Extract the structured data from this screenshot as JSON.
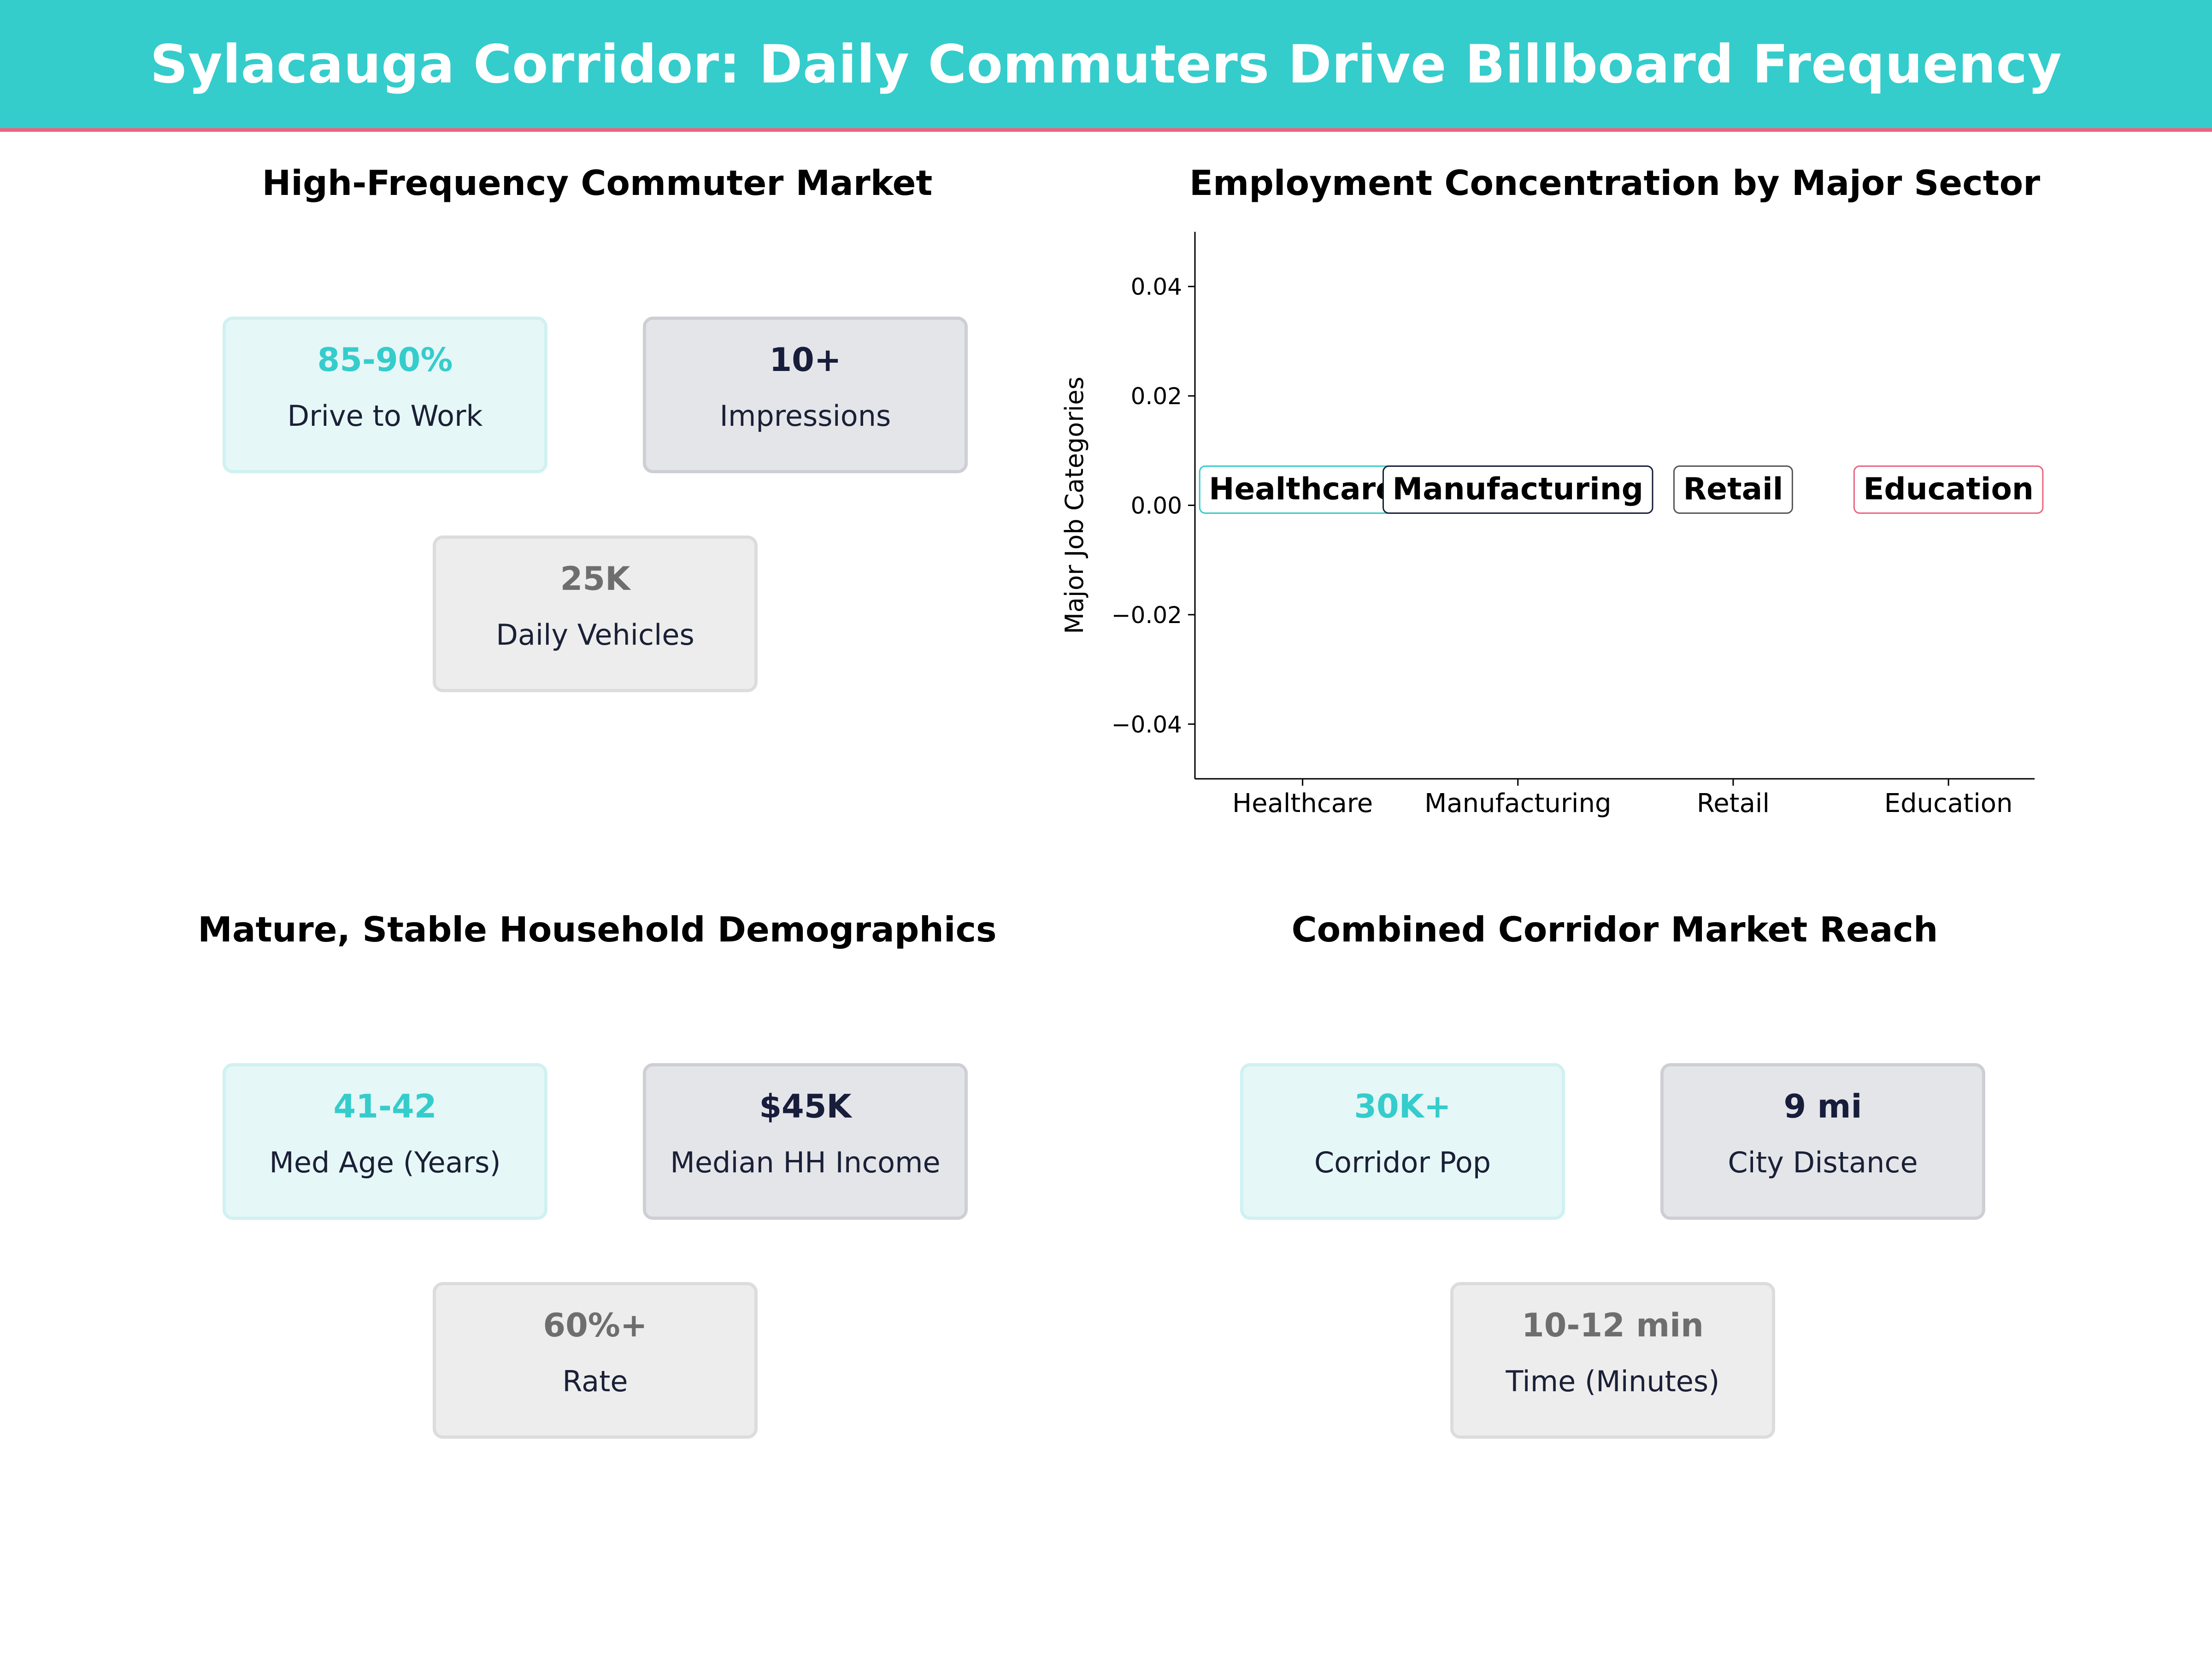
{
  "header": {
    "title": "Sylacauga Corridor: Daily Commuters Drive Billboard Frequency"
  },
  "panels": {
    "commuter": {
      "title": "High-Frequency Commuter Market",
      "cards": [
        {
          "value": "85-90%",
          "label": "Drive to Work"
        },
        {
          "value": "10+",
          "label": "Impressions"
        },
        {
          "value": "25K",
          "label": "Daily Vehicles"
        }
      ]
    },
    "demographics": {
      "title": "Mature, Stable Household Demographics",
      "cards": [
        {
          "value": "41-42",
          "label": "Med Age (Years)"
        },
        {
          "value": "$45K",
          "label": "Median HH Income"
        },
        {
          "value": "60%+",
          "label": "Rate"
        }
      ]
    },
    "reach": {
      "title": "Combined Corridor Market Reach",
      "cards": [
        {
          "value": "30K+",
          "label": "Corridor Pop"
        },
        {
          "value": "9 mi",
          "label": "City Distance"
        },
        {
          "value": "10-12 min",
          "label": "Time (Minutes)"
        }
      ]
    }
  },
  "chart_data": {
    "type": "scatter",
    "title": "Employment Concentration by Major Sector",
    "xlabel": "",
    "ylabel": "Major Job Categories",
    "categories": [
      "Healthcare",
      "Manufacturing",
      "Retail",
      "Education"
    ],
    "values": [
      0,
      0,
      0,
      0
    ],
    "ylim": [
      -0.05,
      0.05
    ],
    "yticks": [
      -0.04,
      -0.02,
      0.0,
      0.02,
      0.04
    ],
    "ytick_labels": [
      "−0.04",
      "−0.02",
      "0.00",
      "0.02",
      "0.04"
    ],
    "label_colors": [
      "#35CCCC",
      "#171D3A",
      "#555555",
      "#E8657F"
    ],
    "grid": false,
    "legend": "none"
  }
}
